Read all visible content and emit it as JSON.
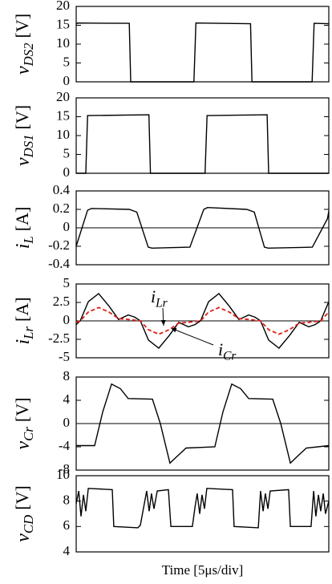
{
  "chart_data": [
    {
      "type": "line",
      "ylabel": {
        "symbol": "v",
        "sub": "DS2",
        "unit": "[V]"
      },
      "ylim": [
        0,
        20
      ],
      "yticks": [
        20,
        15,
        10,
        5,
        0
      ],
      "xlim": [
        0,
        10
      ],
      "x": [
        0,
        0.05,
        2.1,
        2.16,
        4.66,
        4.74,
        6.9,
        6.96,
        9.34,
        9.42,
        10
      ],
      "series": [
        {
          "color": "#000000",
          "values": [
            15.3,
            15.6,
            15.5,
            0,
            0,
            15.6,
            15.4,
            0,
            0,
            15.5,
            15.4
          ]
        }
      ]
    },
    {
      "type": "line",
      "ylabel": {
        "symbol": "v",
        "sub": "DS1",
        "unit": "[V]"
      },
      "ylim": [
        0,
        20
      ],
      "yticks": [
        20,
        15,
        10,
        5,
        0
      ],
      "xlim": [
        0,
        10
      ],
      "x": [
        0,
        0.38,
        0.45,
        2.88,
        2.94,
        5.1,
        5.18,
        7.56,
        7.62,
        10
      ],
      "series": [
        {
          "color": "#000000",
          "values": [
            0,
            0,
            15.3,
            15.5,
            0,
            0,
            15.3,
            15.5,
            0,
            0
          ]
        }
      ]
    },
    {
      "type": "line",
      "ylabel": {
        "symbol": "i",
        "sub": "L",
        "unit": "[A]"
      },
      "ylim": [
        -0.4,
        0.4
      ],
      "yticks": [
        0.4,
        0.2,
        0,
        -0.2,
        -0.4
      ],
      "xlim": [
        0,
        10
      ],
      "zero_line": true,
      "x": [
        0,
        0.45,
        0.6,
        2.1,
        2.4,
        2.85,
        3.0,
        4.5,
        5.05,
        5.2,
        6.75,
        7.05,
        7.45,
        7.6,
        9.35,
        9.95,
        10
      ],
      "series": [
        {
          "color": "#000000",
          "values": [
            -0.2,
            0.19,
            0.21,
            0.2,
            0.17,
            -0.21,
            -0.22,
            -0.21,
            0.2,
            0.22,
            0.2,
            0.17,
            -0.21,
            -0.22,
            -0.21,
            0.1,
            0.18
          ]
        }
      ]
    },
    {
      "type": "line",
      "ylabel": {
        "symbol": "i",
        "sub": "Lr",
        "unit": "[A]"
      },
      "ylim": [
        -5,
        5
      ],
      "yticks": [
        5,
        2.5,
        0,
        -2.5,
        -5
      ],
      "xlim": [
        0,
        10
      ],
      "zero_line": true,
      "x": [
        0,
        0.16,
        0.48,
        0.89,
        1.3,
        1.68,
        2.06,
        2.32,
        2.54,
        2.86,
        3.27,
        3.68,
        4.06,
        4.44,
        4.7,
        4.92,
        5.24,
        5.65,
        6.06,
        6.44,
        6.83,
        7.08,
        7.3,
        7.62,
        8.03,
        8.44,
        8.83,
        9.21,
        9.46,
        9.68,
        10
      ],
      "series": [
        {
          "color": "#000000",
          "values": [
            -0.5,
            0,
            2.6,
            3.7,
            2,
            0.2,
            0.8,
            0.5,
            0,
            -2.6,
            -3.7,
            -2,
            -0.2,
            -0.8,
            -0.5,
            0,
            2.6,
            3.7,
            2,
            0.2,
            0.8,
            0.5,
            0,
            -2.6,
            -3.7,
            -2,
            -0.2,
            -0.8,
            -0.5,
            0,
            2.6
          ]
        },
        {
          "color": "#e0201a",
          "dashed": true,
          "values": [
            -0.2,
            0,
            1.2,
            1.8,
            1.2,
            0.3,
            0.2,
            0.1,
            0,
            -1.2,
            -1.8,
            -1.2,
            -0.3,
            -0.2,
            -0.1,
            0,
            1.2,
            1.8,
            1.2,
            0.3,
            0.2,
            0.1,
            0,
            -1.2,
            -1.8,
            -1.2,
            -0.3,
            -0.2,
            -0.1,
            0,
            1.2
          ]
        }
      ],
      "annotations": [
        {
          "symbol": "i",
          "sub": "Lr"
        },
        {
          "symbol": "i",
          "sub": "Cr"
        }
      ]
    },
    {
      "type": "line",
      "ylabel": {
        "symbol": "v",
        "sub": "Cr",
        "unit": "[V]"
      },
      "ylim": [
        -8,
        8
      ],
      "yticks": [
        8,
        4,
        0,
        -4,
        -8
      ],
      "xlim": [
        0,
        10
      ],
      "zero_line": true,
      "x": [
        0,
        0.73,
        1.05,
        1.4,
        1.75,
        2.06,
        3.02,
        3.33,
        3.71,
        4.03,
        4.35,
        5.49,
        5.81,
        6.16,
        6.51,
        6.83,
        7.78,
        8.1,
        8.48,
        8.79,
        9.11,
        10
      ],
      "series": [
        {
          "color": "#000000",
          "values": [
            -3.8,
            -3.8,
            2,
            6.8,
            6,
            4.3,
            4.2,
            0,
            -6.8,
            -5.5,
            -4.2,
            -4,
            2,
            6.8,
            6,
            4.3,
            4.2,
            0,
            -6.8,
            -5.5,
            -4.2,
            -3.8
          ]
        }
      ]
    },
    {
      "type": "line",
      "ylabel": {
        "symbol": "v",
        "sub": "CD",
        "unit": "[V]"
      },
      "ylim": [
        4,
        10
      ],
      "yticks": [
        10,
        8,
        6,
        4
      ],
      "xlim": [
        0,
        10
      ],
      "xlabel": "Time [5μs/div]",
      "x": [
        0,
        0.1,
        0.19,
        0.29,
        0.38,
        0.48,
        1.43,
        1.49,
        2.44,
        2.54,
        2.79,
        2.89,
        2.98,
        3.08,
        3.21,
        3.65,
        3.75,
        4.6,
        4.7,
        4.79,
        4.89,
        4.98,
        5.08,
        5.17,
        6.19,
        6.25,
        7.21,
        7.3,
        7.4,
        7.49,
        7.59,
        7.68,
        8.41,
        8.48,
        9.3,
        9.4,
        9.49,
        9.59,
        9.68,
        9.78,
        9.87,
        10
      ],
      "series": [
        {
          "color": "#000000",
          "values": [
            7.8,
            8.8,
            6.8,
            8.5,
            7.2,
            9,
            8.9,
            6,
            5.9,
            6.1,
            8.8,
            7.2,
            8.6,
            7.4,
            8.8,
            8.9,
            6,
            6,
            7.5,
            8.6,
            7,
            8.5,
            7.4,
            9,
            8.9,
            6,
            5.9,
            8.8,
            7.2,
            8.6,
            7.4,
            8.8,
            8.9,
            6,
            6,
            8.8,
            6.8,
            8.5,
            7.2,
            8.6,
            7,
            8
          ]
        }
      ]
    }
  ]
}
